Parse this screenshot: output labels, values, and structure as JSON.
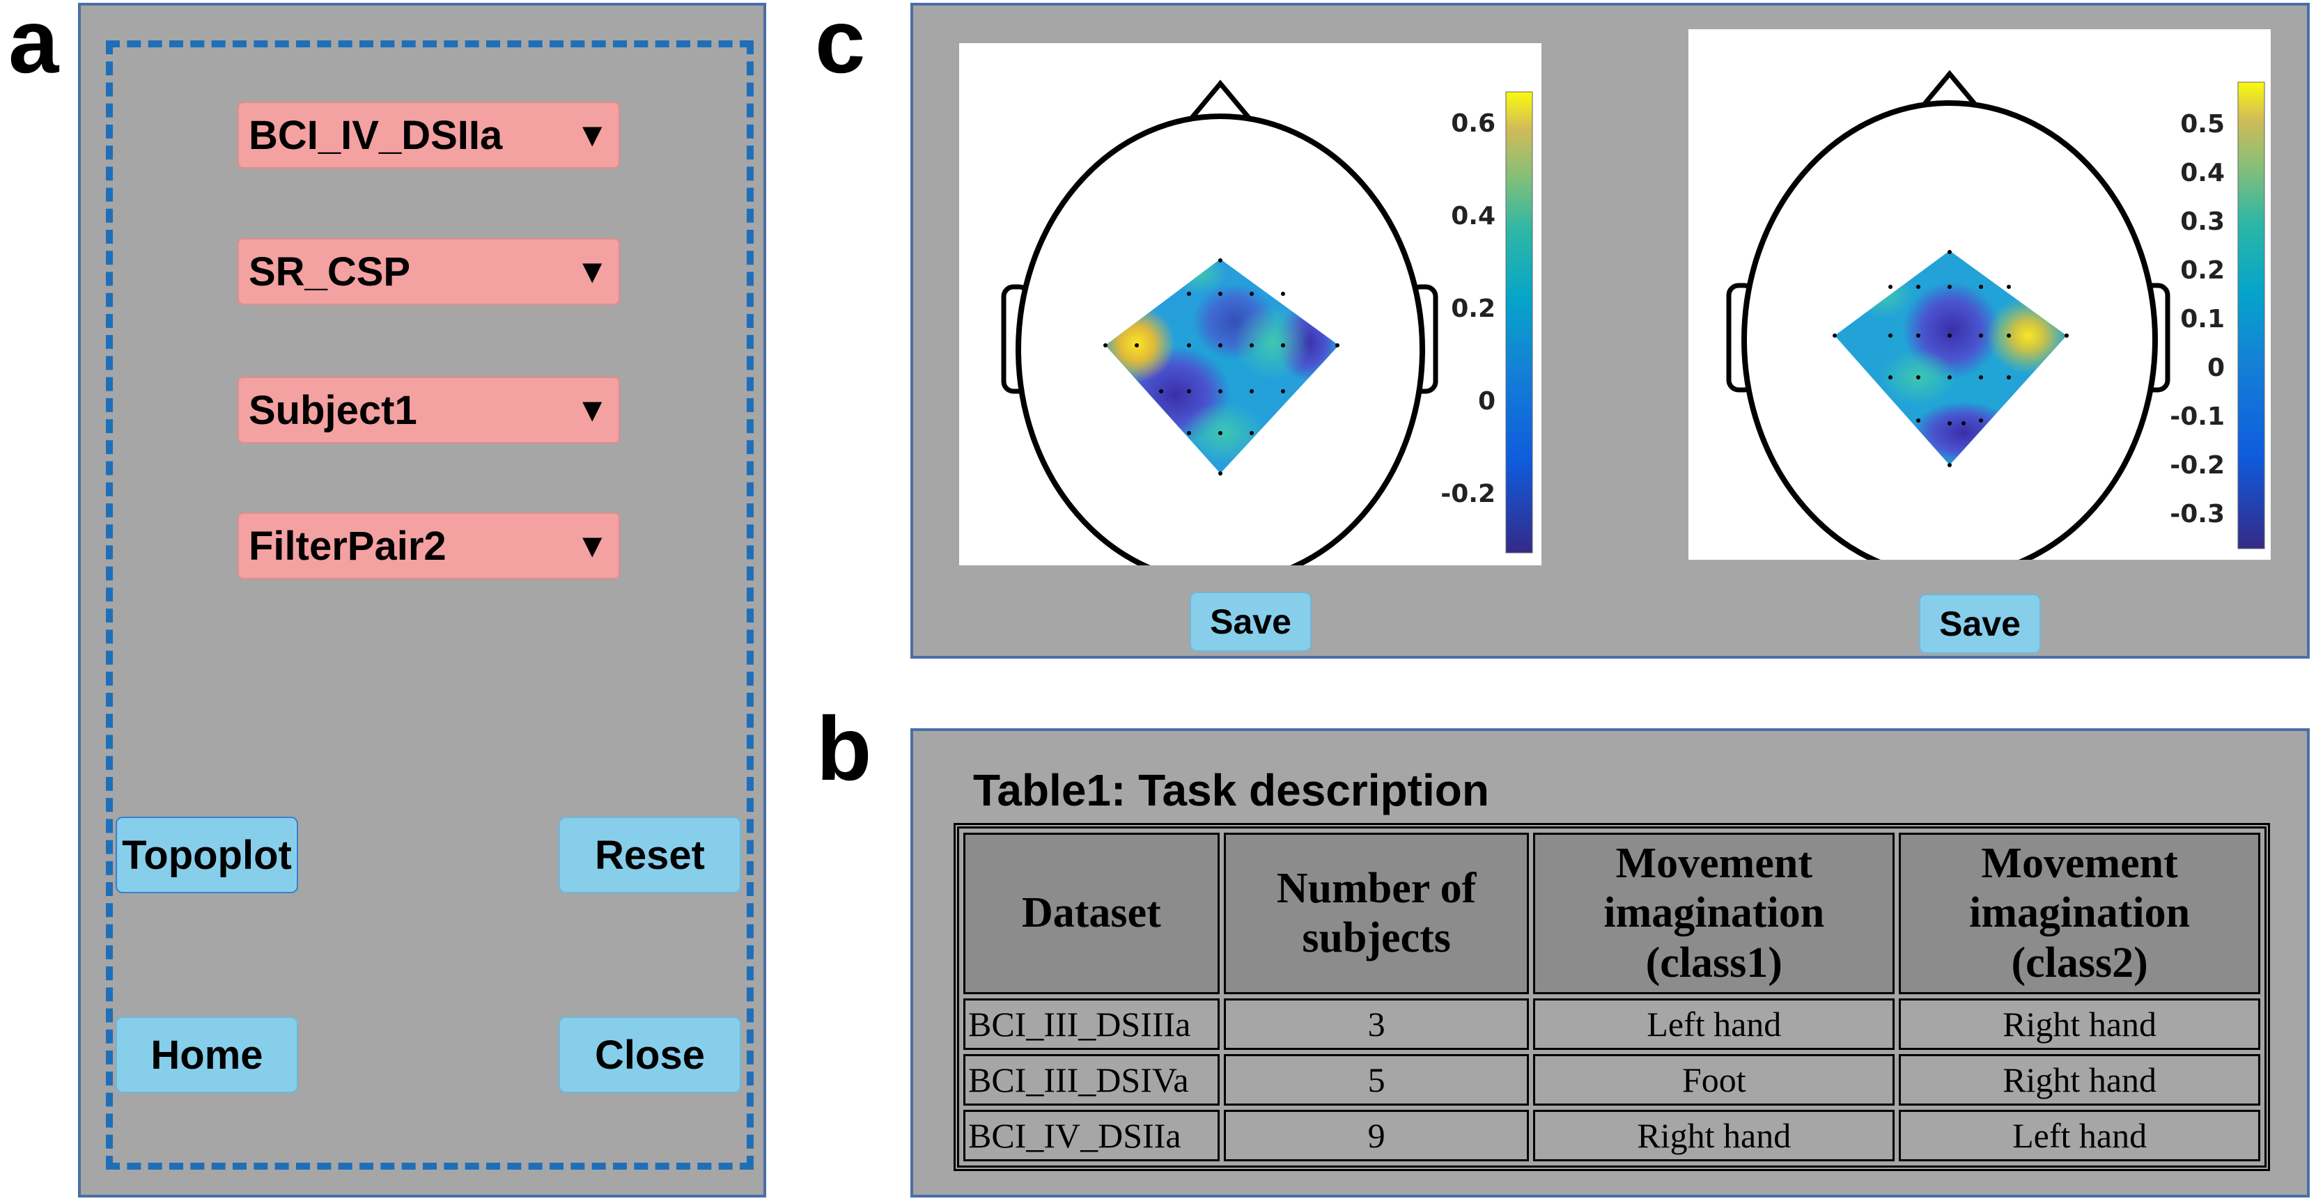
{
  "panel_labels": {
    "a": "a",
    "b": "b",
    "c": "c"
  },
  "panel_a": {
    "dropdowns": [
      {
        "value": "BCI_IV_DSIIa",
        "arrow": "▼"
      },
      {
        "value": "SR_CSP",
        "arrow": "▼"
      },
      {
        "value": "Subject1",
        "arrow": "▼"
      },
      {
        "value": "FilterPair2",
        "arrow": "▼"
      }
    ],
    "buttons": {
      "topoplot": "Topoplot",
      "reset": "Reset",
      "home": "Home",
      "close": "Close"
    },
    "colors": {
      "dropdown_bg": "#f4a1a1",
      "button_bg": "#87ceeb",
      "panel_bg": "#a6a6a6",
      "dash": "#1f6fb8"
    }
  },
  "panel_c": {
    "topoplots": [
      {
        "colorbar_ticks": [
          "0.6",
          "0.4",
          "0.2",
          "0",
          "-0.2"
        ],
        "save_label": "Save"
      },
      {
        "colorbar_ticks": [
          "0.5",
          "0.4",
          "0.3",
          "0.2",
          "0.1",
          "0",
          "-0.1",
          "-0.2",
          "-0.3"
        ],
        "save_label": "Save"
      }
    ],
    "colormap": "parula"
  },
  "panel_b": {
    "table_title": "Table1: Task description",
    "headers": [
      "Dataset",
      "Number of subjects",
      "Movement imagination (class1)",
      "Movement imagination (class2)"
    ],
    "rows": [
      [
        "BCI_III_DSIIIa",
        "3",
        "Left hand",
        "Right hand"
      ],
      [
        "BCI_III_DSIVa",
        "5",
        "Foot",
        "Right hand"
      ],
      [
        "BCI_IV_DSIIa",
        "9",
        "Right hand",
        "Left hand"
      ]
    ]
  }
}
